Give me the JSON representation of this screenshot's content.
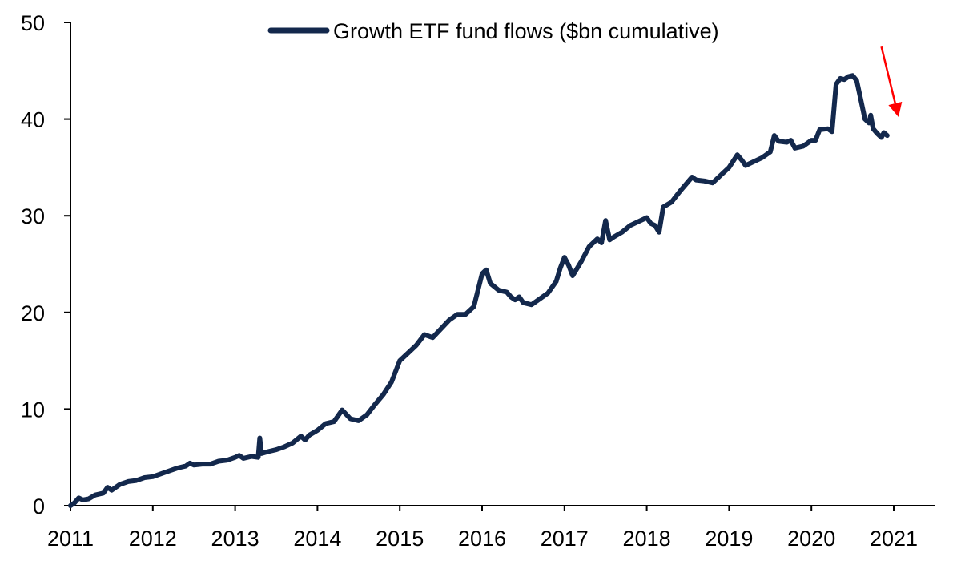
{
  "chart_data": {
    "type": "line",
    "title": "",
    "xlabel": "",
    "ylabel": "",
    "xlim": [
      2011,
      2021
    ],
    "ylim": [
      0,
      50
    ],
    "grid": false,
    "legend": {
      "placement": "top-center",
      "entries": [
        "Growth ETF fund flows ($bn cumulative)"
      ]
    },
    "x_ticks": [
      "2011",
      "2012",
      "2013",
      "2014",
      "2015",
      "2016",
      "2017",
      "2018",
      "2019",
      "2020",
      "2021"
    ],
    "y_ticks": [
      "0",
      "10",
      "20",
      "30",
      "40",
      "50"
    ],
    "colors": {
      "series": "#13284c",
      "annotation_arrow": "#ff0000"
    },
    "annotations": [
      {
        "type": "arrow",
        "meaning": "recent decline",
        "from": [
          2020.85,
          47.5
        ],
        "to": [
          2021.05,
          40.5
        ]
      }
    ],
    "series": [
      {
        "name": "Growth ETF fund flows ($bn cumulative)",
        "points": [
          [
            2011.0,
            0.0
          ],
          [
            2011.05,
            0.3
          ],
          [
            2011.1,
            0.8
          ],
          [
            2011.15,
            0.6
          ],
          [
            2011.22,
            0.7
          ],
          [
            2011.3,
            1.1
          ],
          [
            2011.4,
            1.3
          ],
          [
            2011.45,
            1.9
          ],
          [
            2011.5,
            1.6
          ],
          [
            2011.6,
            2.2
          ],
          [
            2011.7,
            2.5
          ],
          [
            2011.8,
            2.6
          ],
          [
            2011.9,
            2.9
          ],
          [
            2012.0,
            3.0
          ],
          [
            2012.1,
            3.3
          ],
          [
            2012.2,
            3.6
          ],
          [
            2012.3,
            3.9
          ],
          [
            2012.4,
            4.1
          ],
          [
            2012.45,
            4.4
          ],
          [
            2012.5,
            4.2
          ],
          [
            2012.6,
            4.3
          ],
          [
            2012.7,
            4.3
          ],
          [
            2012.8,
            4.6
          ],
          [
            2012.9,
            4.7
          ],
          [
            2013.0,
            5.0
          ],
          [
            2013.05,
            5.2
          ],
          [
            2013.1,
            4.9
          ],
          [
            2013.2,
            5.1
          ],
          [
            2013.28,
            5.0
          ],
          [
            2013.3,
            7.0
          ],
          [
            2013.32,
            5.4
          ],
          [
            2013.4,
            5.6
          ],
          [
            2013.5,
            5.8
          ],
          [
            2013.6,
            6.1
          ],
          [
            2013.7,
            6.5
          ],
          [
            2013.8,
            7.2
          ],
          [
            2013.85,
            6.8
          ],
          [
            2013.9,
            7.3
          ],
          [
            2014.0,
            7.8
          ],
          [
            2014.1,
            8.5
          ],
          [
            2014.2,
            8.7
          ],
          [
            2014.3,
            9.9
          ],
          [
            2014.4,
            9.0
          ],
          [
            2014.5,
            8.8
          ],
          [
            2014.6,
            9.4
          ],
          [
            2014.7,
            10.5
          ],
          [
            2014.8,
            11.5
          ],
          [
            2014.9,
            12.8
          ],
          [
            2015.0,
            15.0
          ],
          [
            2015.1,
            15.8
          ],
          [
            2015.2,
            16.6
          ],
          [
            2015.3,
            17.7
          ],
          [
            2015.4,
            17.4
          ],
          [
            2015.5,
            18.3
          ],
          [
            2015.6,
            19.2
          ],
          [
            2015.7,
            19.8
          ],
          [
            2015.8,
            19.8
          ],
          [
            2015.9,
            20.6
          ],
          [
            2016.0,
            24.0
          ],
          [
            2016.05,
            24.4
          ],
          [
            2016.1,
            23.0
          ],
          [
            2016.2,
            22.3
          ],
          [
            2016.3,
            22.1
          ],
          [
            2016.35,
            21.6
          ],
          [
            2016.4,
            21.3
          ],
          [
            2016.45,
            21.6
          ],
          [
            2016.5,
            21.0
          ],
          [
            2016.6,
            20.8
          ],
          [
            2016.7,
            21.4
          ],
          [
            2016.8,
            22.0
          ],
          [
            2016.9,
            23.2
          ],
          [
            2016.95,
            24.6
          ],
          [
            2017.0,
            25.7
          ],
          [
            2017.05,
            24.9
          ],
          [
            2017.1,
            23.8
          ],
          [
            2017.2,
            25.2
          ],
          [
            2017.3,
            26.8
          ],
          [
            2017.4,
            27.6
          ],
          [
            2017.45,
            27.2
          ],
          [
            2017.5,
            29.5
          ],
          [
            2017.55,
            27.5
          ],
          [
            2017.6,
            27.8
          ],
          [
            2017.7,
            28.3
          ],
          [
            2017.8,
            29.0
          ],
          [
            2017.9,
            29.4
          ],
          [
            2018.0,
            29.8
          ],
          [
            2018.05,
            29.2
          ],
          [
            2018.1,
            29.0
          ],
          [
            2018.15,
            28.3
          ],
          [
            2018.2,
            30.9
          ],
          [
            2018.3,
            31.4
          ],
          [
            2018.4,
            32.5
          ],
          [
            2018.5,
            33.5
          ],
          [
            2018.55,
            34.0
          ],
          [
            2018.6,
            33.7
          ],
          [
            2018.7,
            33.6
          ],
          [
            2018.8,
            33.4
          ],
          [
            2018.9,
            34.2
          ],
          [
            2019.0,
            35.0
          ],
          [
            2019.1,
            36.3
          ],
          [
            2019.15,
            35.8
          ],
          [
            2019.2,
            35.2
          ],
          [
            2019.3,
            35.6
          ],
          [
            2019.4,
            36.0
          ],
          [
            2019.5,
            36.6
          ],
          [
            2019.55,
            38.3
          ],
          [
            2019.6,
            37.7
          ],
          [
            2019.7,
            37.6
          ],
          [
            2019.75,
            37.8
          ],
          [
            2019.8,
            37.0
          ],
          [
            2019.9,
            37.2
          ],
          [
            2020.0,
            37.8
          ],
          [
            2020.05,
            37.8
          ],
          [
            2020.1,
            38.9
          ],
          [
            2020.2,
            39.0
          ],
          [
            2020.25,
            38.7
          ],
          [
            2020.3,
            43.6
          ],
          [
            2020.35,
            44.2
          ],
          [
            2020.4,
            44.1
          ],
          [
            2020.45,
            44.4
          ],
          [
            2020.5,
            44.5
          ],
          [
            2020.55,
            44.0
          ],
          [
            2020.6,
            42.0
          ],
          [
            2020.65,
            40.0
          ],
          [
            2020.7,
            39.6
          ],
          [
            2020.72,
            40.4
          ],
          [
            2020.75,
            39.0
          ],
          [
            2020.8,
            38.5
          ],
          [
            2020.85,
            38.1
          ],
          [
            2020.88,
            38.6
          ],
          [
            2020.92,
            38.3
          ]
        ]
      }
    ]
  }
}
